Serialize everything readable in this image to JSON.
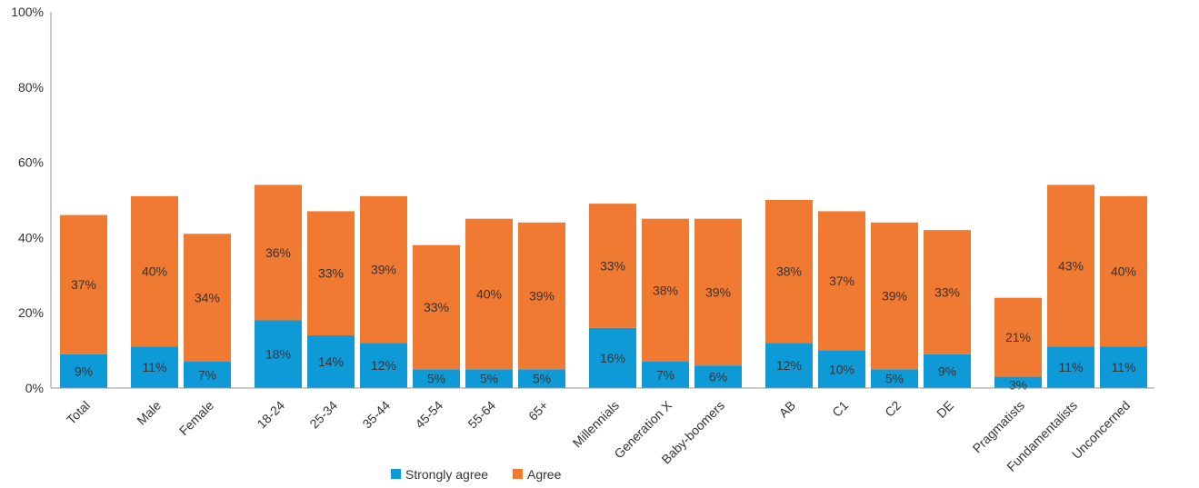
{
  "chart_data": {
    "type": "bar",
    "stacked": true,
    "categories": [
      "Total",
      "Male",
      "Female",
      "18-24",
      "25-34",
      "35-44",
      "45-54",
      "55-64",
      "65+",
      "Millennials",
      "Generation X",
      "Baby-boomers",
      "AB",
      "C1",
      "C2",
      "DE",
      "Pragmatists",
      "Fundamentalists",
      "Unconcerned"
    ],
    "series": [
      {
        "name": "Strongly agree",
        "color": "#0e9ad7",
        "values": [
          9,
          11,
          7,
          18,
          14,
          12,
          5,
          5,
          5,
          16,
          7,
          6,
          12,
          10,
          5,
          9,
          3,
          11,
          11
        ],
        "labels": [
          "9%",
          "11%",
          "7%",
          "18%",
          "14%",
          "12%",
          "5%",
          "5%",
          "5%",
          "16%",
          "7%",
          "6%",
          "12%",
          "10%",
          "5%",
          "9%",
          "3%",
          "11%",
          "11%"
        ]
      },
      {
        "name": "Agree",
        "color": "#f07a32",
        "values": [
          37,
          40,
          34,
          36,
          33,
          39,
          33,
          40,
          39,
          33,
          38,
          39,
          38,
          37,
          39,
          33,
          21,
          43,
          40
        ],
        "labels": [
          "37%",
          "40%",
          "34%",
          "36%",
          "33%",
          "39%",
          "33%",
          "40%",
          "39%",
          "33%",
          "38%",
          "39%",
          "38%",
          "37%",
          "39%",
          "33%",
          "21%",
          "43%",
          "40%"
        ]
      }
    ],
    "groups": [
      [
        0
      ],
      [
        1,
        2
      ],
      [
        3,
        4,
        5,
        6,
        7,
        8
      ],
      [
        9,
        10,
        11
      ],
      [
        12,
        13,
        14,
        15
      ],
      [
        16,
        17,
        18
      ]
    ],
    "ylim": [
      0,
      100
    ],
    "yticks": [
      "0%",
      "20%",
      "40%",
      "60%",
      "80%",
      "100%"
    ],
    "legend_position": "bottom",
    "grid": false,
    "title": "",
    "xlabel": "",
    "ylabel": ""
  }
}
